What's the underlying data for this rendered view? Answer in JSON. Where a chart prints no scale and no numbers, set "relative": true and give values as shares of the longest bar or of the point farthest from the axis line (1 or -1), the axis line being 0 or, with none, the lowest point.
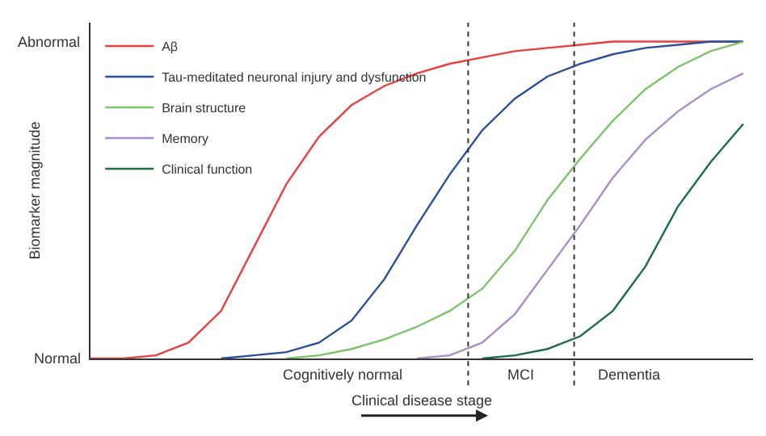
{
  "chart_data": {
    "type": "line",
    "relative": true,
    "xlabel": "Clinical disease stage",
    "ylabel": "Biomarker magnitude",
    "legend": "top left",
    "categories": [
      null,
      null,
      null,
      null,
      null,
      null,
      null,
      null,
      null,
      null,
      null,
      null,
      null,
      null,
      null,
      null,
      null,
      null,
      null,
      null,
      null
    ],
    "series": [
      {
        "name": "Aβ",
        "color": "#e8403f",
        "values": [
          0,
          0,
          0.01,
          0.05,
          0.15,
          0.35,
          0.55,
          0.7,
          0.8,
          0.86,
          0.9,
          0.93,
          0.95,
          0.97,
          0.98,
          0.99,
          1,
          1,
          1,
          1,
          1
        ]
      },
      {
        "name": "Tau-meditated neuronal injury and dysfunction",
        "color": "#2a4f9a",
        "values": [
          null,
          null,
          null,
          null,
          0,
          0.01,
          0.02,
          0.05,
          0.12,
          0.25,
          0.42,
          0.58,
          0.72,
          0.82,
          0.89,
          0.93,
          0.96,
          0.98,
          0.99,
          1,
          1
        ]
      },
      {
        "name": "Brain structure",
        "color": "#7cc46a",
        "values": [
          null,
          null,
          null,
          null,
          null,
          null,
          0,
          0.01,
          0.03,
          0.06,
          0.1,
          0.15,
          0.22,
          0.34,
          0.5,
          0.63,
          0.75,
          0.85,
          0.92,
          0.97,
          1
        ]
      },
      {
        "name": "Memory",
        "color": "#a98cc8",
        "values": [
          null,
          null,
          null,
          null,
          null,
          null,
          null,
          null,
          null,
          null,
          0,
          0.01,
          0.05,
          0.14,
          0.28,
          0.42,
          0.57,
          0.69,
          0.78,
          0.85,
          0.9
        ]
      },
      {
        "name": "Clinical function",
        "color": "#1e6b4a",
        "values": [
          null,
          null,
          null,
          null,
          null,
          null,
          null,
          null,
          null,
          null,
          null,
          null,
          0,
          0.01,
          0.03,
          0.07,
          0.15,
          0.29,
          0.48,
          0.62,
          0.74
        ]
      }
    ],
    "annotations": [
      "Abnormal",
      "Normal",
      "Cognitively normal",
      "MCI",
      "Dementia"
    ]
  }
}
